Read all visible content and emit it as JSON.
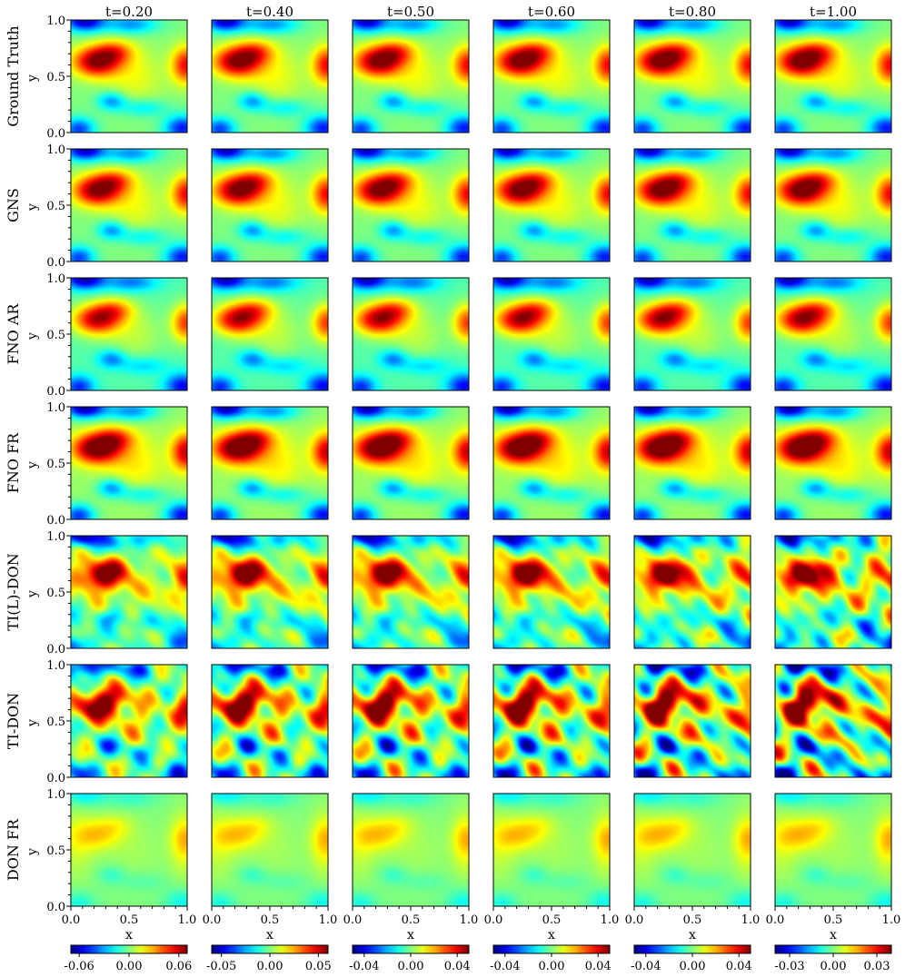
{
  "chart_data": {
    "type": "heatmap",
    "colormap": "jet",
    "times": [
      "t=0.20",
      "t=0.40",
      "t=0.50",
      "t=0.60",
      "t=0.80",
      "t=1.00"
    ],
    "rows": [
      {
        "name": "Ground Truth",
        "style": "smooth",
        "sharp": 1.0,
        "noise": 0.0,
        "bias": 0.0
      },
      {
        "name": "GNS",
        "style": "smooth",
        "sharp": 1.0,
        "noise": 0.0,
        "bias": 0.0
      },
      {
        "name": "FNO AR",
        "style": "smooth",
        "sharp": 0.95,
        "noise": 0.0,
        "bias": -0.1
      },
      {
        "name": "FNO FR",
        "style": "smooth",
        "sharp": 1.1,
        "noise": 0.0,
        "bias": 0.05
      },
      {
        "name": "TI(L)-DON",
        "style": "noisy",
        "sharp": 1.0,
        "noise": 0.9,
        "bias": 0.0
      },
      {
        "name": "TI-DON",
        "style": "noisy",
        "sharp": 1.0,
        "noise": 1.2,
        "bias": 0.0
      },
      {
        "name": "DON FR",
        "style": "blurred",
        "sharp": 0.45,
        "noise": 0.0,
        "bias": 0.0
      }
    ],
    "x_label": "x",
    "y_label": "y",
    "x_ticks": [
      "0.0",
      "0.5",
      "1.0"
    ],
    "y_ticks": [
      "0.0",
      "0.5",
      "1.0"
    ],
    "xlim": [
      0,
      1
    ],
    "ylim": [
      0,
      1
    ],
    "colorbars": [
      {
        "ticks": [
          "-0.06",
          "0.00",
          "0.06"
        ],
        "range": [
          -0.07,
          0.07
        ]
      },
      {
        "ticks": [
          "-0.05",
          "0.00",
          "0.05"
        ],
        "range": [
          -0.06,
          0.06
        ]
      },
      {
        "ticks": [
          "-0.04",
          "0.00",
          "0.04"
        ],
        "range": [
          -0.05,
          0.05
        ]
      },
      {
        "ticks": [
          "-0.04",
          "0.00",
          "0.04"
        ],
        "range": [
          -0.05,
          0.05
        ]
      },
      {
        "ticks": [
          "-0.04",
          "0.00",
          "0.04"
        ],
        "range": [
          -0.05,
          0.05
        ]
      },
      {
        "ticks": [
          "-0.03",
          "0.00",
          "0.03"
        ],
        "range": [
          -0.04,
          0.04
        ]
      }
    ]
  }
}
